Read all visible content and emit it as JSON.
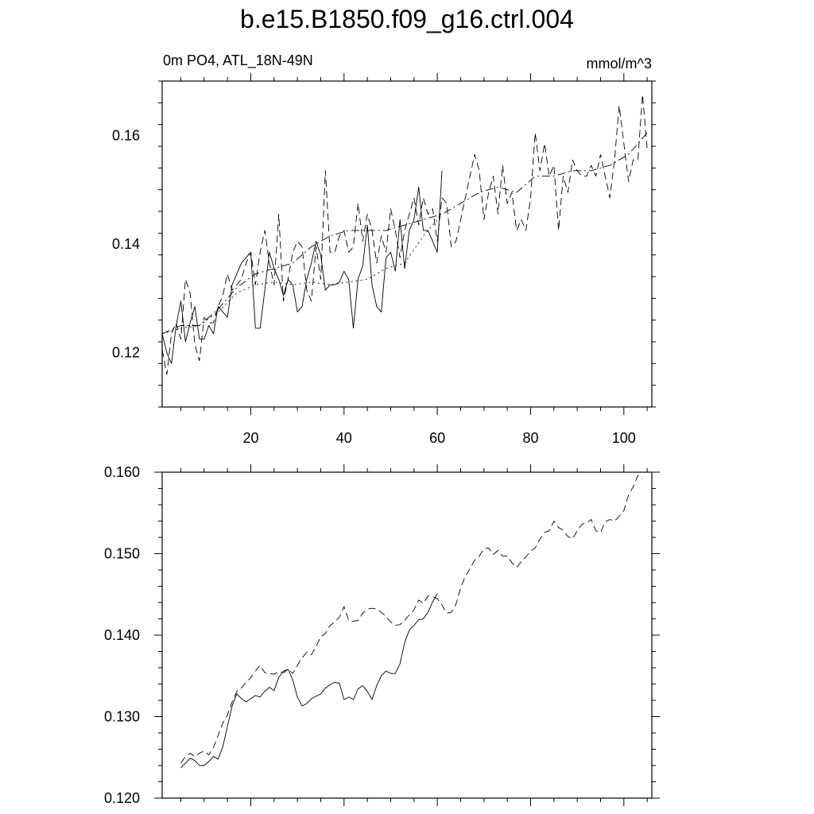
{
  "figure": {
    "title": "b.e15.B1850.f09_g16.ctrl.004",
    "left_string": "0m PO4, ATL_18N-49N",
    "right_string": "mmol/m^3"
  },
  "chart_data": [
    {
      "type": "line",
      "title": "b.e15.B1850.f09_g16.ctrl.004",
      "left_label": "0m PO4, ATL_18N-49N",
      "right_label": "mmol/m^3",
      "xlim": [
        1,
        106
      ],
      "ylim": [
        0.11,
        0.17
      ],
      "xticks": [
        20,
        40,
        60,
        80,
        100
      ],
      "xtick_labels": [
        "20",
        "40",
        "60",
        "80",
        "100"
      ],
      "yticks": [
        0.12,
        0.14,
        0.16
      ],
      "ytick_labels": [
        "0.12",
        "0.14",
        "0.16"
      ],
      "series": [
        {
          "style": "solid",
          "x": [
            1,
            2,
            3,
            4,
            5,
            6,
            7,
            8,
            9,
            10,
            11,
            12,
            13,
            14,
            15,
            16,
            17,
            18,
            19,
            20,
            21,
            22,
            23,
            24,
            25,
            26,
            27,
            28,
            29,
            30,
            31,
            32,
            33,
            34,
            35,
            36,
            37,
            38,
            39,
            40,
            41,
            42,
            43,
            44,
            45,
            46,
            47,
            48,
            49,
            50,
            51,
            52,
            53,
            54,
            55,
            56,
            57,
            58,
            59,
            60,
            61
          ],
          "y": [
            0.1235,
            0.12,
            0.118,
            0.125,
            0.1295,
            0.122,
            0.1255,
            0.1285,
            0.1225,
            0.1225,
            0.125,
            0.1235,
            0.1285,
            0.1275,
            0.1265,
            0.1325,
            0.1345,
            0.1365,
            0.1375,
            0.1385,
            0.1245,
            0.1245,
            0.1315,
            0.1385,
            0.1355,
            0.1335,
            0.1305,
            0.1335,
            0.1325,
            0.1275,
            0.1285,
            0.1335,
            0.1365,
            0.1405,
            0.138,
            0.1315,
            0.1325,
            0.1325,
            0.133,
            0.135,
            0.1335,
            0.1245,
            0.1335,
            0.136,
            0.1435,
            0.1325,
            0.1285,
            0.1275,
            0.1375,
            0.1385,
            0.135,
            0.1445,
            0.1355,
            0.1425,
            0.1445,
            0.1505,
            0.1425,
            0.1425,
            0.1405,
            0.1385,
            0.1535
          ]
        },
        {
          "style": "dashed",
          "x": [
            1,
            2,
            3,
            4,
            5,
            6,
            7,
            8,
            9,
            10,
            11,
            12,
            13,
            14,
            15,
            16,
            17,
            18,
            19,
            20,
            21,
            22,
            23,
            24,
            25,
            26,
            27,
            28,
            29,
            30,
            31,
            32,
            33,
            34,
            35,
            36,
            37,
            38,
            39,
            40,
            41,
            42,
            43,
            44,
            45,
            46,
            47,
            48,
            49,
            50,
            51,
            52,
            53,
            54,
            55,
            56,
            57,
            58,
            59,
            60,
            61,
            62,
            63,
            64,
            65,
            66,
            67,
            68,
            69,
            70,
            71,
            72,
            73,
            74,
            75,
            76,
            77,
            78,
            79,
            80,
            81,
            82,
            83,
            84,
            85,
            86,
            87,
            88,
            89,
            90,
            91,
            92,
            93,
            94,
            95,
            96,
            97,
            98,
            99,
            100,
            101,
            102,
            103,
            104,
            105
          ],
          "y": [
            0.1205,
            0.116,
            0.1235,
            0.1255,
            0.1225,
            0.1335,
            0.131,
            0.1215,
            0.1185,
            0.1265,
            0.1255,
            0.1255,
            0.1285,
            0.1305,
            0.1345,
            0.1315,
            0.1325,
            0.1335,
            0.1365,
            0.1385,
            0.1325,
            0.1385,
            0.1425,
            0.1365,
            0.1325,
            0.1455,
            0.1295,
            0.1335,
            0.1385,
            0.1405,
            0.1395,
            0.1315,
            0.1295,
            0.1395,
            0.1335,
            0.1535,
            0.1385,
            0.1385,
            0.1415,
            0.1425,
            0.1385,
            0.1395,
            0.1475,
            0.1405,
            0.1455,
            0.1425,
            0.1365,
            0.1415,
            0.1385,
            0.1465,
            0.1425,
            0.1375,
            0.1425,
            0.1455,
            0.1485,
            0.1435,
            0.1485,
            0.1455,
            0.1465,
            0.1405,
            0.1485,
            0.1475,
            0.1395,
            0.1405,
            0.1445,
            0.1485,
            0.1525,
            0.1565,
            0.1535,
            0.1445,
            0.1495,
            0.1525,
            0.1455,
            0.1545,
            0.1475,
            0.1495,
            0.1425,
            0.1445,
            0.1425,
            0.1485,
            0.1605,
            0.1535,
            0.1585,
            0.1525,
            0.1545,
            0.1425,
            0.1525,
            0.1495,
            0.1555,
            0.1535,
            0.1525,
            0.1525,
            0.1545,
            0.1525,
            0.1565,
            0.1525,
            0.1485,
            0.1555,
            0.1655,
            0.1585,
            0.1515,
            0.1555,
            0.1555,
            0.1675,
            0.1575
          ]
        },
        {
          "style": "dash-dot",
          "x": [
            1,
            5,
            9,
            13,
            17,
            21,
            25,
            29,
            33,
            37,
            41,
            45,
            49,
            53,
            57,
            61,
            65,
            69,
            73,
            77,
            81,
            85,
            89,
            93,
            97,
            101,
            105
          ],
          "y": [
            0.1235,
            0.125,
            0.125,
            0.128,
            0.132,
            0.1345,
            0.1355,
            0.1365,
            0.1395,
            0.1415,
            0.1425,
            0.1425,
            0.1425,
            0.1435,
            0.1445,
            0.1455,
            0.1475,
            0.1495,
            0.1505,
            0.1495,
            0.1525,
            0.1525,
            0.1535,
            0.1535,
            0.1545,
            0.1565,
            0.1605
          ]
        },
        {
          "style": "dotted",
          "x": [
            1,
            5,
            9,
            13,
            17,
            21,
            25,
            29,
            33,
            37,
            41,
            45,
            49,
            53,
            57,
            61
          ],
          "y": [
            0.1235,
            0.1245,
            0.125,
            0.1275,
            0.131,
            0.1325,
            0.133,
            0.1325,
            0.133,
            0.1325,
            0.133,
            0.1335,
            0.1355,
            0.1365,
            0.1415,
            0.1455
          ]
        }
      ]
    },
    {
      "type": "line",
      "xlim": [
        1,
        106
      ],
      "ylim": [
        0.12,
        0.16
      ],
      "xticks": [
        20,
        40,
        60,
        80,
        100
      ],
      "yticks": [
        0.12,
        0.13,
        0.14,
        0.15,
        0.16
      ],
      "ytick_labels": [
        "0.120",
        "0.130",
        "0.140",
        "0.150",
        "0.160"
      ],
      "series": [
        {
          "style": "solid",
          "x": [
            5,
            6,
            7,
            8,
            9,
            10,
            11,
            12,
            13,
            14,
            15,
            16,
            17,
            18,
            19,
            20,
            21,
            22,
            23,
            24,
            25,
            26,
            27,
            28,
            29,
            30,
            31,
            32,
            33,
            34,
            35,
            36,
            37,
            38,
            39,
            40,
            41,
            42,
            43,
            44,
            45,
            46,
            47,
            48,
            49,
            50,
            51,
            52,
            53,
            54,
            55,
            56,
            57,
            58,
            59,
            60
          ],
          "y": [
            0.1237,
            0.1243,
            0.1249,
            0.1246,
            0.124,
            0.124,
            0.1245,
            0.1251,
            0.1248,
            0.1263,
            0.1288,
            0.1313,
            0.1328,
            0.1322,
            0.1318,
            0.1322,
            0.1326,
            0.1324,
            0.1331,
            0.1336,
            0.1332,
            0.1348,
            0.1356,
            0.1358,
            0.1345,
            0.1324,
            0.1313,
            0.1316,
            0.1322,
            0.1325,
            0.1328,
            0.1335,
            0.1339,
            0.1342,
            0.1341,
            0.1321,
            0.1324,
            0.1321,
            0.1334,
            0.1338,
            0.1331,
            0.1321,
            0.1338,
            0.135,
            0.1356,
            0.1353,
            0.1353,
            0.1365,
            0.1391,
            0.1406,
            0.1412,
            0.1419,
            0.142,
            0.1428,
            0.1441,
            0.1451
          ]
        },
        {
          "style": "dashed",
          "x": [
            5,
            6,
            7,
            8,
            9,
            10,
            11,
            12,
            13,
            14,
            15,
            16,
            17,
            18,
            19,
            20,
            21,
            22,
            23,
            24,
            25,
            26,
            27,
            28,
            29,
            30,
            31,
            32,
            33,
            34,
            35,
            36,
            37,
            38,
            39,
            40,
            41,
            42,
            43,
            44,
            45,
            46,
            47,
            48,
            49,
            50,
            51,
            52,
            53,
            54,
            55,
            56,
            57,
            58,
            59,
            60,
            61,
            62,
            63,
            64,
            65,
            66,
            67,
            68,
            69,
            70,
            71,
            72,
            73,
            74,
            75,
            76,
            77,
            78,
            79,
            80,
            81,
            82,
            83,
            84,
            85,
            86,
            87,
            88,
            89,
            90,
            91,
            92,
            93,
            94,
            95,
            96,
            97,
            98,
            99,
            100,
            101,
            102,
            103,
            104
          ],
          "y": [
            0.1243,
            0.1251,
            0.1255,
            0.1251,
            0.1255,
            0.1258,
            0.1253,
            0.1262,
            0.1277,
            0.1292,
            0.1302,
            0.1318,
            0.1331,
            0.1335,
            0.1342,
            0.1348,
            0.1356,
            0.1363,
            0.1354,
            0.1353,
            0.1352,
            0.1355,
            0.1354,
            0.1358,
            0.1353,
            0.1363,
            0.1372,
            0.1379,
            0.1376,
            0.1386,
            0.1398,
            0.1402,
            0.1412,
            0.1416,
            0.1422,
            0.1435,
            0.1418,
            0.1417,
            0.1418,
            0.1427,
            0.1432,
            0.1433,
            0.1432,
            0.1428,
            0.1423,
            0.1416,
            0.1412,
            0.1413,
            0.1418,
            0.1425,
            0.1431,
            0.1443,
            0.1439,
            0.1448,
            0.1447,
            0.1445,
            0.1437,
            0.1427,
            0.1428,
            0.1438,
            0.1458,
            0.1472,
            0.1482,
            0.1492,
            0.1497,
            0.1506,
            0.1507,
            0.1499,
            0.1504,
            0.1497,
            0.1497,
            0.1489,
            0.1483,
            0.149,
            0.1496,
            0.1503,
            0.1507,
            0.1518,
            0.1526,
            0.1528,
            0.154,
            0.1532,
            0.1529,
            0.1521,
            0.1518,
            0.1528,
            0.1536,
            0.1538,
            0.1542,
            0.1528,
            0.1526,
            0.1539,
            0.1542,
            0.154,
            0.1546,
            0.1553,
            0.1572,
            0.1582,
            0.1596,
            0.1592
          ]
        }
      ]
    }
  ]
}
